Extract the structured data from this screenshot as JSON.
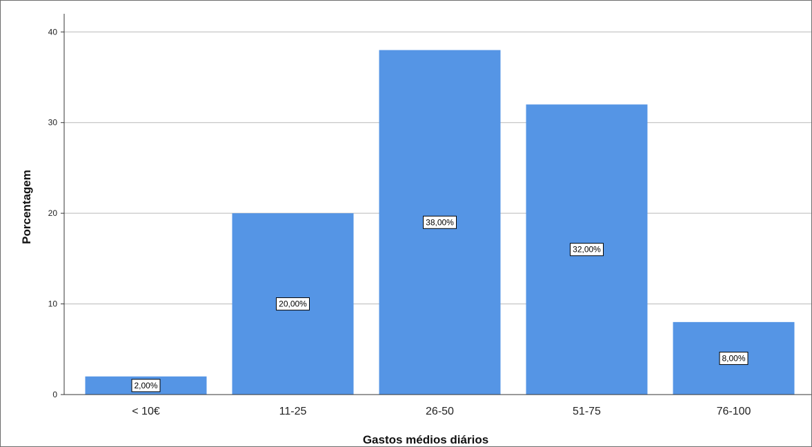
{
  "chart_data": {
    "type": "bar",
    "categories": [
      "< 10€",
      "11-25",
      "26-50",
      "51-75",
      "76-100"
    ],
    "values": [
      2,
      20,
      38,
      32,
      8
    ],
    "data_labels": [
      "2,00%",
      "20,00%",
      "38,00%",
      "32,00%",
      "8,00%"
    ],
    "xlabel": "Gastos médios diários",
    "ylabel": "Porcentagem",
    "ylim": [
      0,
      42
    ],
    "yticks": [
      0,
      10,
      20,
      30,
      40
    ],
    "grid": true,
    "bar_color": "#5595e5",
    "legend": "none"
  }
}
